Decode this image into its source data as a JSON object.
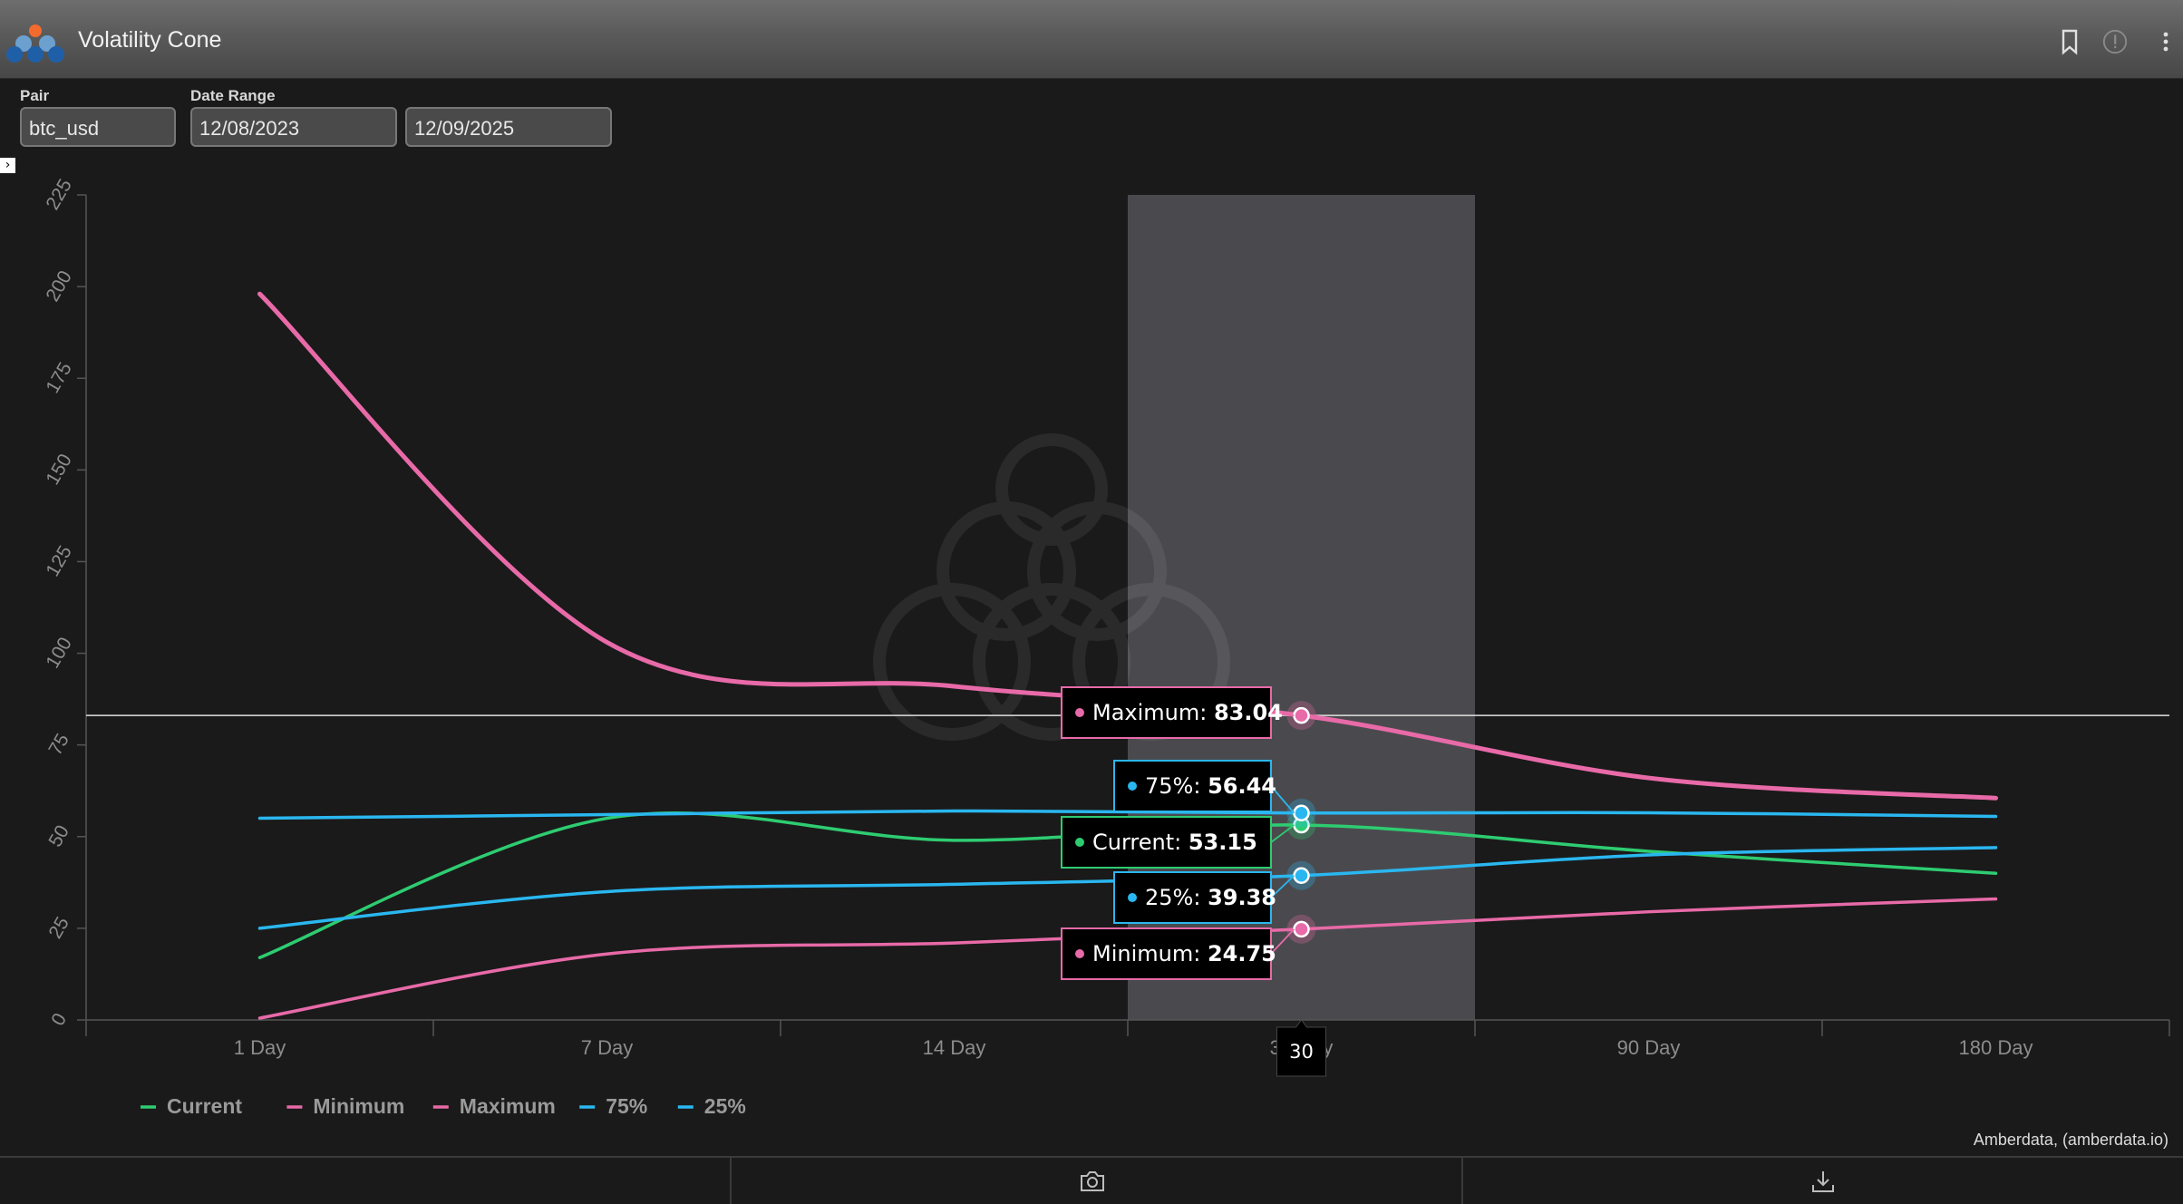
{
  "window": {
    "title": "Volatility Cone",
    "credit": "Amberdata, (amberdata.io)"
  },
  "controls": {
    "pair_label": "Pair",
    "pair_value": "btc_usd",
    "date_range_label": "Date Range",
    "date_start": "12/08/2023",
    "date_end": "12/09/2025"
  },
  "icons": {
    "bookmark": "bookmark-icon",
    "info": "info-icon",
    "menu": "more-vertical-icon",
    "camera": "camera-icon",
    "download": "download-icon",
    "expand": "chevron-right-icon"
  },
  "colors": {
    "current": "#2ecc71",
    "minimum": "#e86aa8",
    "maximum": "#e86aa8",
    "p75": "#2ab7f0",
    "p25": "#2ab7f0",
    "background": "#1a1a1a",
    "highlight": "#4a4a4e"
  },
  "chart_data": {
    "type": "line",
    "categories": [
      "1 Day",
      "7 Day",
      "14 Day",
      "30 Day",
      "90 Day",
      "180 Day"
    ],
    "ylim": [
      0,
      225
    ],
    "yticks": [
      0,
      25,
      50,
      75,
      100,
      125,
      150,
      175,
      200,
      225
    ],
    "grid": false,
    "legend_position": "bottom-left",
    "series": [
      {
        "name": "Current",
        "key": "current",
        "values": [
          17,
          55,
          49,
          53.15,
          46,
          40
        ]
      },
      {
        "name": "Minimum",
        "key": "minimum",
        "values": [
          0.5,
          18,
          21,
          24.75,
          29.5,
          33
        ]
      },
      {
        "name": "Maximum",
        "key": "maximum",
        "values": [
          198,
          103,
          91,
          83.04,
          66,
          60.5
        ]
      },
      {
        "name": "75%",
        "key": "p75",
        "values": [
          55,
          56,
          57,
          56.44,
          56.5,
          55.5
        ]
      },
      {
        "name": "25%",
        "key": "p25",
        "values": [
          25,
          35,
          37,
          39.38,
          45,
          47
        ]
      }
    ],
    "hover": {
      "category_index": 3,
      "x_label": "30",
      "crosshair_y": 83.04,
      "tooltips": [
        {
          "label": "Maximum",
          "value": "83.04",
          "series": "maximum"
        },
        {
          "label": "75%",
          "value": "56.44",
          "series": "p75"
        },
        {
          "label": "Current",
          "value": "53.15",
          "series": "current"
        },
        {
          "label": "25%",
          "value": "39.38",
          "series": "p25"
        },
        {
          "label": "Minimum",
          "value": "24.75",
          "series": "minimum"
        }
      ]
    }
  }
}
